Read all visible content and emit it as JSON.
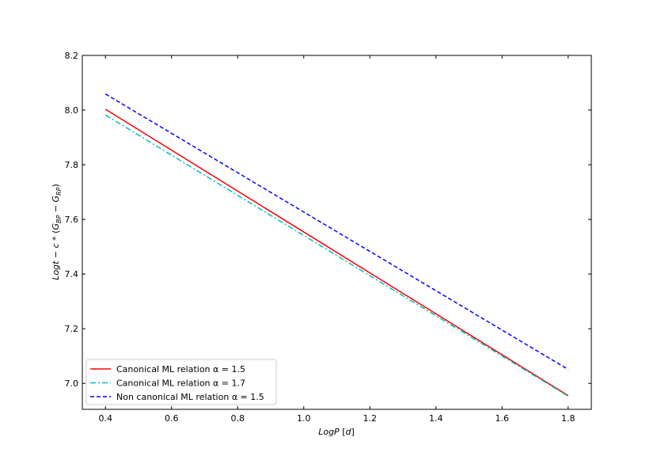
{
  "chart_data": {
    "type": "line",
    "title": "",
    "xlabel": "LogP [d]",
    "ylabel": "Logt − c*(G_BP − G_RP)",
    "xlim": [
      0.33,
      1.87
    ],
    "ylim": [
      6.905,
      8.2
    ],
    "xticks": [
      0.4,
      0.6,
      0.8,
      1.0,
      1.2,
      1.4,
      1.6,
      1.8
    ],
    "xtick_labels": [
      "0.4",
      "0.6",
      "0.8",
      "1.0",
      "1.2",
      "1.4",
      "1.6",
      "1.8"
    ],
    "yticks": [
      7.0,
      7.2,
      7.4,
      7.6,
      7.8,
      8.0,
      8.2
    ],
    "ytick_labels": [
      "7.0",
      "7.2",
      "7.4",
      "7.6",
      "7.8",
      "8.0",
      "8.2"
    ],
    "grid": false,
    "legend_position": "lower-left",
    "series": [
      {
        "name": "Canonical ML relation α = 1.5",
        "x": [
          0.4,
          1.8
        ],
        "y": [
          8.003,
          6.955
        ],
        "color": "#ff0000",
        "dash": "solid"
      },
      {
        "name": "Canonical ML relation α = 1.7",
        "x": [
          0.4,
          1.8
        ],
        "y": [
          7.982,
          6.953
        ],
        "color": "#00bfbf",
        "dash": "dashdot"
      },
      {
        "name": "Non canonical ML relation α = 1.5",
        "x": [
          0.4,
          1.8
        ],
        "y": [
          8.059,
          7.051
        ],
        "color": "#0000ff",
        "dash": "dashed"
      }
    ]
  }
}
